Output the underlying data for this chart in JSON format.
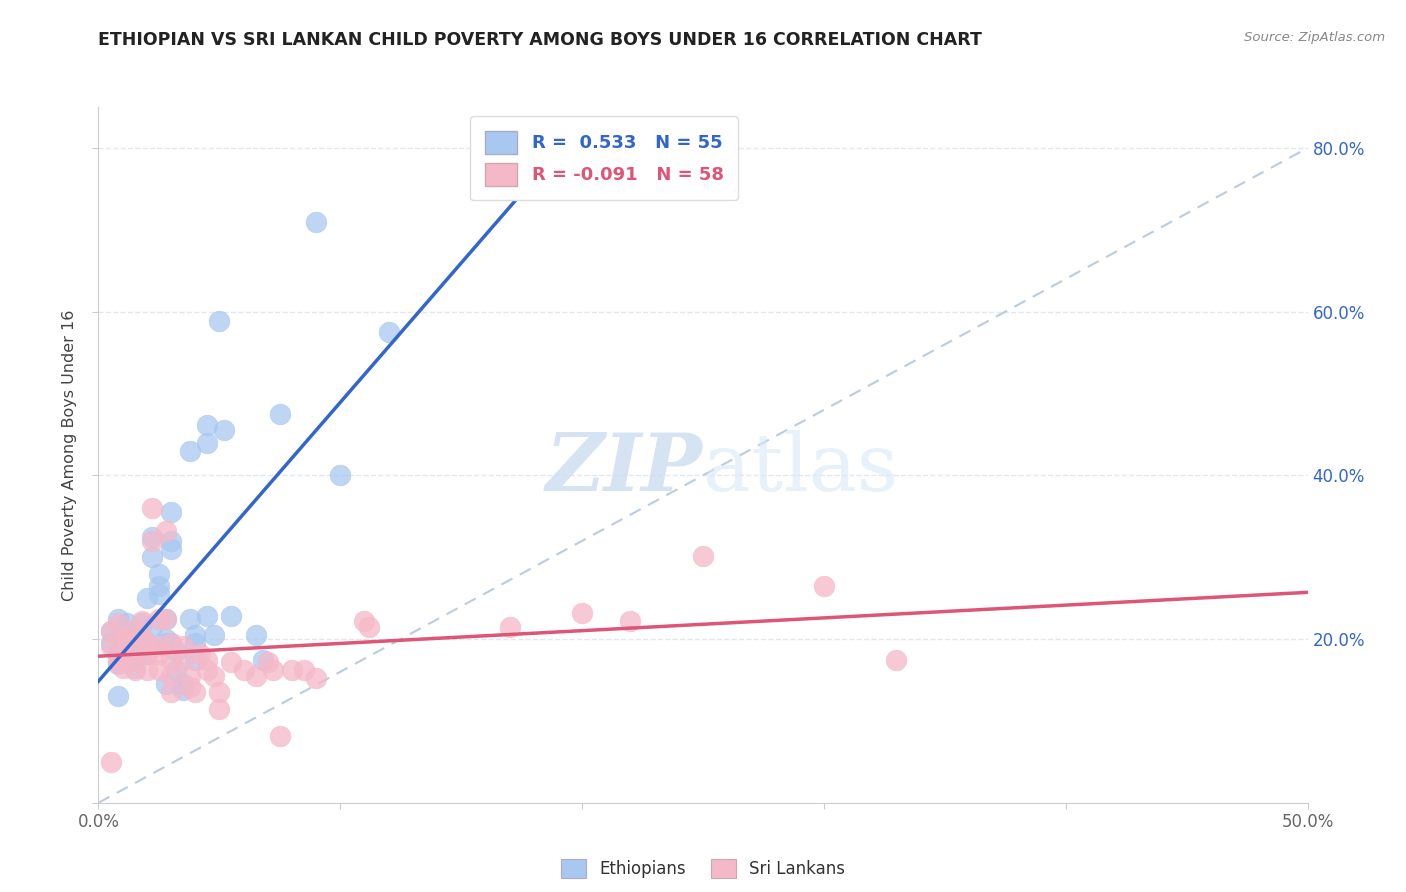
{
  "title": "ETHIOPIAN VS SRI LANKAN CHILD POVERTY AMONG BOYS UNDER 16 CORRELATION CHART",
  "source": "Source: ZipAtlas.com",
  "ylabel": "Child Poverty Among Boys Under 16",
  "xlim": [
    0,
    0.5
  ],
  "ylim": [
    0,
    0.85
  ],
  "xtick_positions": [
    0.0,
    0.1,
    0.2,
    0.3,
    0.4,
    0.5
  ],
  "xtick_labels_visible": [
    "0.0%",
    "",
    "",
    "",
    "",
    "50.0%"
  ],
  "ytick_positions": [
    0.0,
    0.2,
    0.4,
    0.6,
    0.8
  ],
  "ytick_labels": [
    "",
    "",
    "",
    "",
    ""
  ],
  "right_ytick_positions": [
    0.2,
    0.4,
    0.6,
    0.8
  ],
  "right_ytick_labels": [
    "20.0%",
    "40.0%",
    "60.0%",
    "80.0%"
  ],
  "ethiopian_color": "#a8c8f0",
  "srilankan_color": "#f5b8c8",
  "blue_line_color": "#3366cc",
  "pink_line_color": "#dd5577",
  "dashed_line_color": "#bbccdd",
  "grid_color": "#e0e8f0",
  "background_color": "#ffffff",
  "title_color": "#222222",
  "axis_color": "#666666",
  "watermark_color": "#ccddf0",
  "ethiopian_scatter": [
    [
      0.005,
      0.195
    ],
    [
      0.005,
      0.21
    ],
    [
      0.008,
      0.225
    ],
    [
      0.008,
      0.18
    ],
    [
      0.008,
      0.17
    ],
    [
      0.01,
      0.205
    ],
    [
      0.01,
      0.192
    ],
    [
      0.012,
      0.22
    ],
    [
      0.012,
      0.2
    ],
    [
      0.012,
      0.185
    ],
    [
      0.015,
      0.21
    ],
    [
      0.015,
      0.175
    ],
    [
      0.015,
      0.165
    ],
    [
      0.018,
      0.2
    ],
    [
      0.018,
      0.22
    ],
    [
      0.02,
      0.25
    ],
    [
      0.02,
      0.182
    ],
    [
      0.02,
      0.195
    ],
    [
      0.022,
      0.215
    ],
    [
      0.022,
      0.3
    ],
    [
      0.022,
      0.325
    ],
    [
      0.025,
      0.265
    ],
    [
      0.025,
      0.28
    ],
    [
      0.025,
      0.255
    ],
    [
      0.028,
      0.225
    ],
    [
      0.028,
      0.2
    ],
    [
      0.028,
      0.195
    ],
    [
      0.028,
      0.145
    ],
    [
      0.03,
      0.32
    ],
    [
      0.03,
      0.31
    ],
    [
      0.03,
      0.355
    ],
    [
      0.03,
      0.195
    ],
    [
      0.032,
      0.185
    ],
    [
      0.032,
      0.162
    ],
    [
      0.035,
      0.145
    ],
    [
      0.035,
      0.138
    ],
    [
      0.038,
      0.43
    ],
    [
      0.038,
      0.225
    ],
    [
      0.04,
      0.205
    ],
    [
      0.04,
      0.195
    ],
    [
      0.04,
      0.175
    ],
    [
      0.045,
      0.462
    ],
    [
      0.045,
      0.44
    ],
    [
      0.045,
      0.228
    ],
    [
      0.048,
      0.205
    ],
    [
      0.05,
      0.588
    ],
    [
      0.052,
      0.455
    ],
    [
      0.055,
      0.228
    ],
    [
      0.065,
      0.205
    ],
    [
      0.068,
      0.175
    ],
    [
      0.075,
      0.475
    ],
    [
      0.09,
      0.71
    ],
    [
      0.1,
      0.4
    ],
    [
      0.12,
      0.575
    ],
    [
      0.008,
      0.13
    ]
  ],
  "srilankan_scatter": [
    [
      0.005,
      0.192
    ],
    [
      0.005,
      0.21
    ],
    [
      0.008,
      0.22
    ],
    [
      0.008,
      0.182
    ],
    [
      0.008,
      0.172
    ],
    [
      0.01,
      0.2
    ],
    [
      0.01,
      0.165
    ],
    [
      0.012,
      0.202
    ],
    [
      0.012,
      0.195
    ],
    [
      0.012,
      0.182
    ],
    [
      0.015,
      0.175
    ],
    [
      0.015,
      0.212
    ],
    [
      0.015,
      0.162
    ],
    [
      0.018,
      0.222
    ],
    [
      0.018,
      0.202
    ],
    [
      0.02,
      0.195
    ],
    [
      0.02,
      0.182
    ],
    [
      0.02,
      0.162
    ],
    [
      0.022,
      0.36
    ],
    [
      0.022,
      0.32
    ],
    [
      0.025,
      0.225
    ],
    [
      0.025,
      0.192
    ],
    [
      0.025,
      0.182
    ],
    [
      0.025,
      0.162
    ],
    [
      0.028,
      0.332
    ],
    [
      0.028,
      0.225
    ],
    [
      0.03,
      0.195
    ],
    [
      0.03,
      0.175
    ],
    [
      0.03,
      0.155
    ],
    [
      0.03,
      0.135
    ],
    [
      0.035,
      0.192
    ],
    [
      0.035,
      0.175
    ],
    [
      0.038,
      0.155
    ],
    [
      0.038,
      0.142
    ],
    [
      0.04,
      0.135
    ],
    [
      0.042,
      0.182
    ],
    [
      0.045,
      0.175
    ],
    [
      0.045,
      0.162
    ],
    [
      0.048,
      0.155
    ],
    [
      0.05,
      0.135
    ],
    [
      0.05,
      0.115
    ],
    [
      0.055,
      0.172
    ],
    [
      0.06,
      0.162
    ],
    [
      0.065,
      0.155
    ],
    [
      0.07,
      0.172
    ],
    [
      0.072,
      0.162
    ],
    [
      0.075,
      0.082
    ],
    [
      0.08,
      0.162
    ],
    [
      0.085,
      0.162
    ],
    [
      0.09,
      0.152
    ],
    [
      0.11,
      0.222
    ],
    [
      0.112,
      0.215
    ],
    [
      0.17,
      0.215
    ],
    [
      0.2,
      0.232
    ],
    [
      0.22,
      0.222
    ],
    [
      0.25,
      0.302
    ],
    [
      0.3,
      0.265
    ],
    [
      0.33,
      0.175
    ],
    [
      0.005,
      0.05
    ]
  ]
}
